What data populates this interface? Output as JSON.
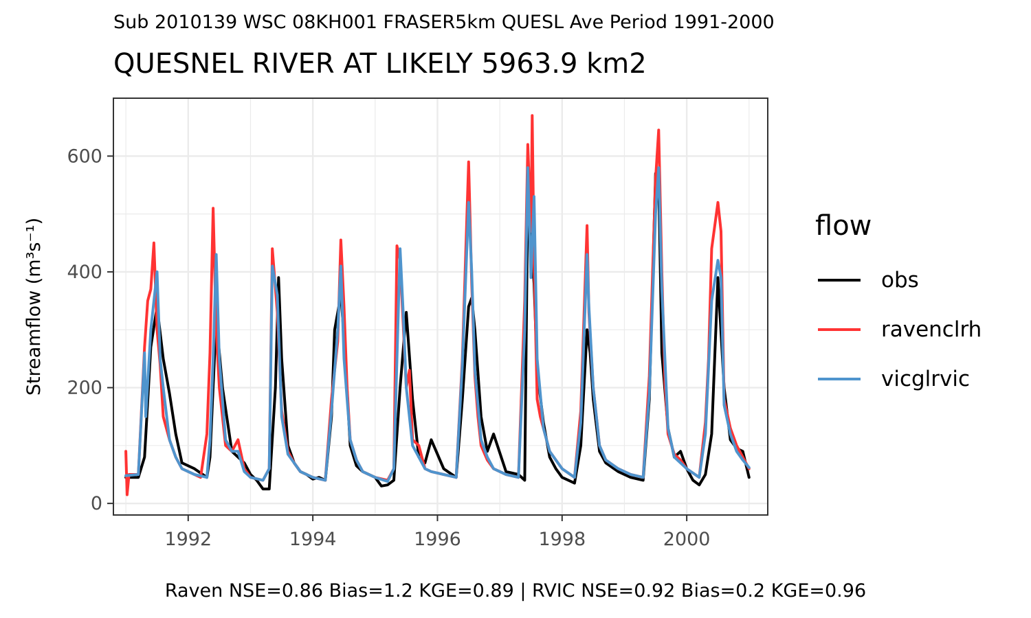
{
  "subtitle": "Sub 2010139 WSC 08KH001 FRASER5km QUESL Ave Period 1991-2000",
  "title": "QUESNEL RIVER AT LIKELY 5963.9 km2",
  "caption": "Raven NSE=0.86 Bias=1.2 KGE=0.89 | RVIC NSE=0.92 Bias=0.2 KGE=0.96",
  "legend": {
    "title": "flow",
    "items": [
      {
        "label": "obs",
        "color": "#000000"
      },
      {
        "label": "ravenclrh",
        "color": "#FF3333"
      },
      {
        "label": "vicglrvic",
        "color": "#4F94CD"
      }
    ]
  },
  "chart_data": {
    "type": "line",
    "xlabel": "",
    "ylabel": "Streamflow (m³s⁻¹)",
    "xlim": [
      1990.8,
      2001.3
    ],
    "ylim": [
      -20,
      700
    ],
    "x_ticks": [
      1992,
      1994,
      1996,
      1998,
      2000
    ],
    "y_ticks": [
      0,
      200,
      400,
      600
    ],
    "grid": true,
    "legend_position": "right",
    "series": [
      {
        "name": "obs",
        "color": "#000000",
        "x": [
          1991.0,
          1991.2,
          1991.3,
          1991.4,
          1991.5,
          1991.6,
          1991.7,
          1991.8,
          1991.9,
          1992.1,
          1992.3,
          1992.35,
          1992.45,
          1992.55,
          1992.7,
          1992.9,
          1993.0,
          1993.1,
          1993.2,
          1993.3,
          1993.4,
          1993.45,
          1993.5,
          1993.6,
          1993.7,
          1993.8,
          1993.9,
          1994.0,
          1994.1,
          1994.2,
          1994.3,
          1994.35,
          1994.45,
          1994.5,
          1994.6,
          1994.7,
          1994.8,
          1995.0,
          1995.1,
          1995.2,
          1995.3,
          1995.4,
          1995.5,
          1995.6,
          1995.7,
          1995.8,
          1995.9,
          1996.1,
          1996.3,
          1996.4,
          1996.5,
          1996.55,
          1996.6,
          1996.7,
          1996.8,
          1996.9,
          1997.1,
          1997.3,
          1997.4,
          1997.45,
          1997.55,
          1997.6,
          1997.7,
          1997.8,
          1997.9,
          1998.0,
          1998.2,
          1998.3,
          1998.4,
          1998.45,
          1998.5,
          1998.6,
          1998.7,
          1998.9,
          1999.1,
          1999.3,
          1999.4,
          1999.5,
          1999.55,
          1999.6,
          1999.7,
          1999.8,
          1999.9,
          2000.0,
          2000.1,
          2000.2,
          2000.3,
          2000.4,
          2000.5,
          2000.6,
          2000.7,
          2000.8,
          2000.9,
          2001.0
        ],
        "values": [
          45,
          45,
          80,
          270,
          340,
          250,
          190,
          120,
          70,
          60,
          45,
          80,
          320,
          200,
          90,
          70,
          50,
          40,
          25,
          25,
          200,
          390,
          250,
          100,
          70,
          55,
          50,
          42,
          45,
          40,
          150,
          300,
          360,
          290,
          100,
          65,
          55,
          45,
          30,
          32,
          40,
          200,
          330,
          180,
          80,
          70,
          110,
          60,
          45,
          180,
          340,
          355,
          300,
          150,
          90,
          120,
          55,
          50,
          40,
          540,
          380,
          230,
          140,
          80,
          60,
          45,
          35,
          100,
          300,
          260,
          180,
          90,
          70,
          55,
          45,
          40,
          180,
          570,
          560,
          260,
          130,
          80,
          90,
          60,
          40,
          32,
          50,
          120,
          390,
          200,
          110,
          95,
          90,
          45
        ]
      },
      {
        "name": "ravenclrh",
        "color": "#FF3333",
        "x": [
          1991.0,
          1991.02,
          1991.05,
          1991.2,
          1991.3,
          1991.35,
          1991.4,
          1991.45,
          1991.5,
          1991.55,
          1991.6,
          1991.7,
          1991.8,
          1991.9,
          1992.1,
          1992.2,
          1992.3,
          1992.35,
          1992.4,
          1992.45,
          1992.5,
          1992.6,
          1992.7,
          1992.8,
          1992.9,
          1993.0,
          1993.2,
          1993.3,
          1993.35,
          1993.43,
          1993.5,
          1993.6,
          1993.7,
          1993.8,
          1994.0,
          1994.2,
          1994.3,
          1994.4,
          1994.45,
          1994.5,
          1994.55,
          1994.6,
          1994.7,
          1994.8,
          1995.0,
          1995.2,
          1995.3,
          1995.35,
          1995.4,
          1995.5,
          1995.55,
          1995.6,
          1995.7,
          1995.8,
          1995.9,
          1996.1,
          1996.3,
          1996.4,
          1996.5,
          1996.55,
          1996.6,
          1996.65,
          1996.7,
          1996.8,
          1996.9,
          1997.1,
          1997.3,
          1997.4,
          1997.45,
          1997.5,
          1997.52,
          1997.55,
          1997.6,
          1997.65,
          1997.7,
          1997.8,
          1997.9,
          1998.0,
          1998.2,
          1998.3,
          1998.4,
          1998.43,
          1998.5,
          1998.55,
          1998.6,
          1998.7,
          1998.9,
          1999.1,
          1999.3,
          1999.4,
          1999.5,
          1999.55,
          1999.6,
          1999.65,
          1999.7,
          1999.8,
          1999.9,
          2000.0,
          2000.2,
          2000.3,
          2000.35,
          2000.4,
          2000.5,
          2000.55,
          2000.6,
          2000.7,
          2000.8,
          2000.9,
          2001.0
        ],
        "values": [
          90,
          15,
          50,
          50,
          270,
          350,
          370,
          450,
          300,
          240,
          150,
          110,
          80,
          60,
          50,
          45,
          120,
          260,
          510,
          300,
          200,
          100,
          90,
          110,
          60,
          45,
          40,
          60,
          440,
          330,
          160,
          90,
          70,
          55,
          45,
          40,
          180,
          280,
          455,
          340,
          200,
          110,
          75,
          55,
          45,
          40,
          60,
          445,
          420,
          200,
          230,
          110,
          100,
          60,
          55,
          50,
          45,
          250,
          590,
          380,
          220,
          150,
          100,
          75,
          60,
          50,
          45,
          350,
          620,
          470,
          670,
          420,
          180,
          150,
          130,
          90,
          75,
          60,
          45,
          160,
          480,
          330,
          200,
          150,
          100,
          75,
          60,
          50,
          45,
          220,
          560,
          645,
          400,
          210,
          120,
          85,
          75,
          60,
          45,
          140,
          250,
          440,
          520,
          470,
          180,
          130,
          100,
          80,
          60
        ]
      },
      {
        "name": "vicglrvic",
        "color": "#4F94CD",
        "x": [
          1991.0,
          1991.2,
          1991.3,
          1991.32,
          1991.4,
          1991.5,
          1991.55,
          1991.6,
          1991.7,
          1991.8,
          1991.9,
          1992.1,
          1992.3,
          1992.35,
          1992.4,
          1992.45,
          1992.5,
          1992.6,
          1992.7,
          1992.8,
          1992.9,
          1993.0,
          1993.2,
          1993.3,
          1993.35,
          1993.43,
          1993.5,
          1993.6,
          1993.7,
          1993.8,
          1994.0,
          1994.2,
          1994.3,
          1994.4,
          1994.45,
          1994.5,
          1994.6,
          1994.7,
          1994.8,
          1995.0,
          1995.2,
          1995.3,
          1995.4,
          1995.45,
          1995.5,
          1995.6,
          1995.7,
          1995.8,
          1995.9,
          1996.1,
          1996.3,
          1996.4,
          1996.5,
          1996.55,
          1996.6,
          1996.7,
          1996.8,
          1996.9,
          1997.1,
          1997.3,
          1997.4,
          1997.45,
          1997.5,
          1997.55,
          1997.6,
          1997.7,
          1997.8,
          1997.9,
          1998.0,
          1998.2,
          1998.3,
          1998.4,
          1998.43,
          1998.5,
          1998.55,
          1998.6,
          1998.7,
          1998.9,
          1999.1,
          1999.3,
          1999.4,
          1999.5,
          1999.55,
          1999.6,
          1999.7,
          1999.8,
          1999.9,
          2000.0,
          2000.2,
          2000.3,
          2000.4,
          2000.5,
          2000.55,
          2000.6,
          2000.7,
          2000.8,
          2000.9,
          2001.0
        ],
        "values": [
          48,
          50,
          260,
          150,
          300,
          400,
          250,
          200,
          110,
          80,
          60,
          50,
          45,
          110,
          250,
          430,
          250,
          110,
          90,
          90,
          55,
          45,
          40,
          60,
          410,
          360,
          150,
          85,
          70,
          55,
          45,
          40,
          160,
          300,
          410,
          250,
          110,
          75,
          55,
          45,
          38,
          60,
          440,
          330,
          200,
          100,
          80,
          60,
          55,
          50,
          45,
          240,
          520,
          400,
          230,
          110,
          80,
          60,
          50,
          45,
          300,
          580,
          390,
          530,
          250,
          130,
          90,
          75,
          60,
          45,
          140,
          430,
          340,
          200,
          150,
          100,
          75,
          60,
          50,
          45,
          190,
          500,
          580,
          370,
          130,
          80,
          70,
          60,
          45,
          120,
          350,
          420,
          390,
          170,
          120,
          90,
          75,
          62
        ]
      }
    ]
  }
}
